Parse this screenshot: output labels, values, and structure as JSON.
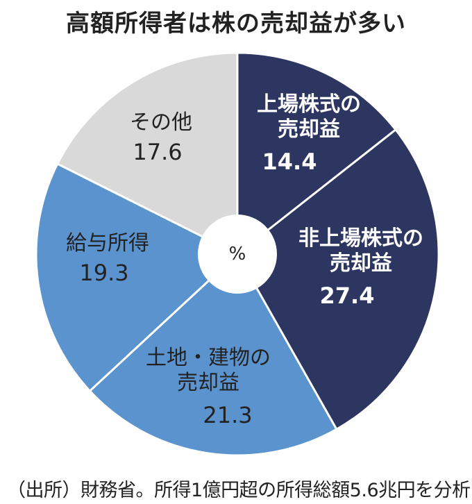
{
  "title": "高額所得者は株の売却益が多い",
  "source": "（出所）財務省。所得1億円超の所得総額5.6兆円を分析",
  "center_label": "%",
  "colors": {
    "dark_navy": "#2d3561",
    "mid_blue": "#5b93cf",
    "light_gray": "#d9d9d9",
    "separator": "#ffffff"
  },
  "chart_data": {
    "type": "pie",
    "title": "高額所得者は株の売却益が多い",
    "unit": "%",
    "slices": [
      {
        "label_lines": [
          "上場株式の",
          "売却益"
        ],
        "value": 14.4,
        "color": "#2d3561",
        "text_color": "#ffffff"
      },
      {
        "label_lines": [
          "非上場株式の",
          "売却益"
        ],
        "value": 27.4,
        "color": "#2d3561",
        "text_color": "#ffffff"
      },
      {
        "label_lines": [
          "土地・建物の",
          "売却益"
        ],
        "value": 21.3,
        "color": "#5b93cf",
        "text_color": "#222222"
      },
      {
        "label_lines": [
          "給与所得"
        ],
        "value": 19.3,
        "color": "#5b93cf",
        "text_color": "#222222"
      },
      {
        "label_lines": [
          "その他"
        ],
        "value": 17.6,
        "color": "#d9d9d9",
        "text_color": "#222222"
      }
    ]
  }
}
